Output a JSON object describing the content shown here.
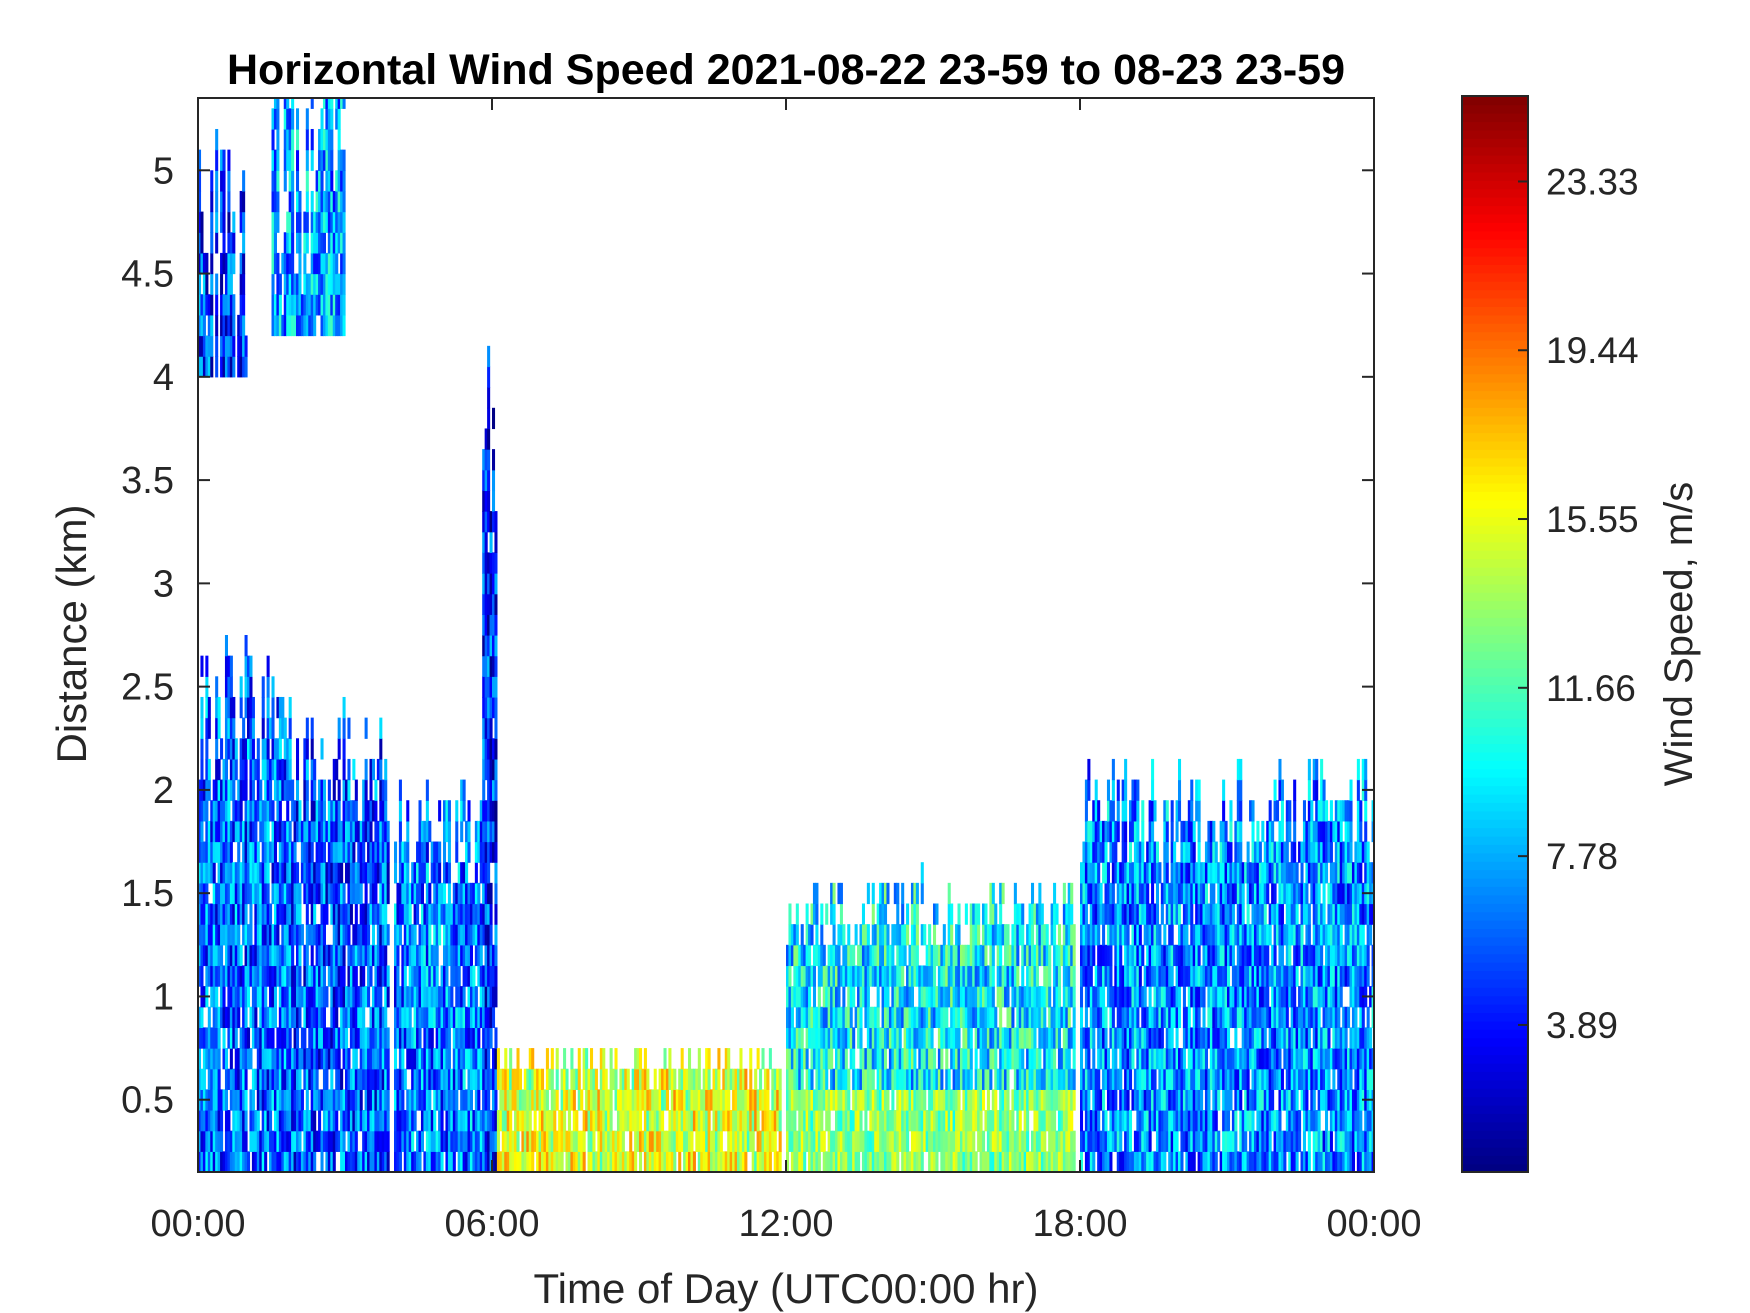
{
  "chart_data": {
    "type": "heatmap",
    "title": "Horizontal Wind Speed 2021-08-22 23-59 to 08-23 23-59",
    "xlabel": "Time of Day (UTC00:00 hr)",
    "ylabel": "Distance (km)",
    "x_ticks": [
      "00:00",
      "06:00",
      "12:00",
      "18:00",
      "00:00"
    ],
    "x_tick_hours": [
      0,
      6,
      12,
      18,
      24
    ],
    "xlim_hours": [
      0,
      24
    ],
    "y_ticks": [
      "0.5",
      "1",
      "1.5",
      "2",
      "2.5",
      "3",
      "3.5",
      "4",
      "4.5",
      "5"
    ],
    "y_tick_values": [
      0.5,
      1,
      1.5,
      2,
      2.5,
      3,
      3.5,
      4,
      4.5,
      5
    ],
    "ylim_km": [
      0.15,
      5.35
    ],
    "colorbar": {
      "label": "Wind Speed, m/s",
      "colormap": "jet",
      "ticks": [
        "3.89",
        "7.78",
        "11.66",
        "15.55",
        "19.44",
        "23.33"
      ],
      "tick_values": [
        3.89,
        7.78,
        11.66,
        15.55,
        19.44,
        23.33
      ],
      "range": [
        0.5,
        25.3
      ]
    },
    "grid": false,
    "regions": [
      {
        "t": [
          0.0,
          1.9
        ],
        "top_km": 2.4,
        "speed": 6.0
      },
      {
        "t": [
          0.0,
          1.0
        ],
        "top_km": 4.6,
        "speed": 5.0,
        "z_from": 4.0
      },
      {
        "t": [
          1.5,
          3.0
        ],
        "top_km": 5.3,
        "speed": 7.5,
        "z_from": 4.2
      },
      {
        "t": [
          1.9,
          3.9
        ],
        "top_km": 2.1,
        "speed": 5.5
      },
      {
        "t": [
          4.0,
          5.9
        ],
        "top_km": 1.8,
        "speed": 6.5
      },
      {
        "t": [
          5.8,
          6.1
        ],
        "top_km": 3.7,
        "speed": 4.5
      },
      {
        "t": [
          6.1,
          11.9
        ],
        "top_km": 0.65,
        "speed": 15.0
      },
      {
        "t": [
          12.0,
          17.9
        ],
        "top_km": 1.4,
        "speed": 9.5
      },
      {
        "t": [
          18.0,
          24.0
        ],
        "top_km": 1.9,
        "speed": 7.0
      }
    ]
  }
}
